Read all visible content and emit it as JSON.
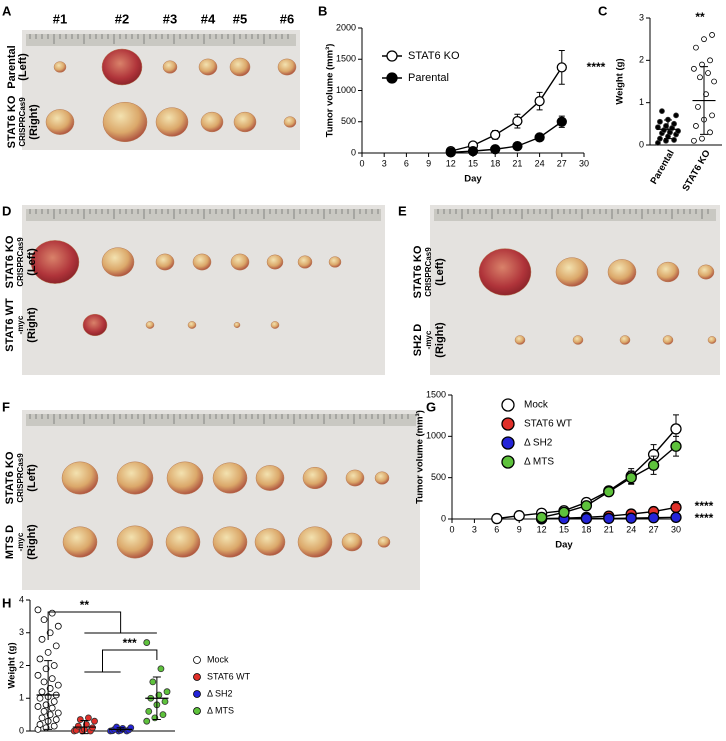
{
  "photo_panels": [
    {
      "letter": "A",
      "columns": [
        "#1",
        "#2",
        "#3",
        "#4",
        "#5",
        "#6"
      ],
      "rows": [
        [
          "Parental",
          "(Left)"
        ],
        [
          "STAT6 KO",
          "CRISPRCas9",
          "(Right)"
        ]
      ]
    },
    {
      "letter": "D",
      "rows": [
        [
          "STAT6 KO",
          "CRISPRCas9",
          "(Left)"
        ],
        [
          "STAT6 WT",
          "-myc",
          "(Right)"
        ]
      ]
    },
    {
      "letter": "E",
      "rows": [
        [
          "STAT6 KO",
          "CRISPRCas9",
          "(Left)"
        ],
        [
          "SH2 D",
          "-myc",
          "(Right)"
        ]
      ]
    },
    {
      "letter": "F",
      "rows": [
        [
          "STAT6 KO",
          "CRISPRCas9",
          "(Left)"
        ],
        [
          "MTS D",
          "-myc",
          "(Right)"
        ]
      ]
    }
  ],
  "chart_data": [
    {
      "type": "line",
      "panel_letter": "B",
      "x_label": "Day",
      "y_label": "Tumor volume (mm³)",
      "xlim": [
        0,
        30
      ],
      "xticks": [
        0,
        3,
        6,
        9,
        12,
        15,
        18,
        21,
        24,
        27,
        30
      ],
      "ylim": [
        0,
        2000
      ],
      "yticks": [
        0,
        500,
        1000,
        1500,
        2000
      ],
      "legend": "upper left",
      "x": [
        12,
        15,
        18,
        21,
        24,
        27
      ],
      "series": [
        {
          "name": "STAT6 KO",
          "color": "#ffffff",
          "values": [
            30,
            120,
            290,
            510,
            830,
            1370
          ],
          "errors": [
            20,
            40,
            70,
            110,
            140,
            270
          ]
        },
        {
          "name": "Parental",
          "color": "#000000",
          "values": [
            10,
            30,
            60,
            110,
            250,
            500
          ],
          "errors": [
            5,
            10,
            15,
            25,
            50,
            90
          ]
        }
      ],
      "annotations": [
        "****"
      ]
    },
    {
      "type": "dot",
      "panel_letter": "C",
      "y_label": "Weight (g)",
      "ylim": [
        0,
        3
      ],
      "yticks": [
        0,
        1,
        2,
        3
      ],
      "series": [
        {
          "name": "Parental",
          "color": "#000000",
          "mean": 0.37,
          "sd": 0.22,
          "points": [
            0.05,
            0.1,
            0.12,
            0.15,
            0.2,
            0.25,
            0.28,
            0.3,
            0.33,
            0.35,
            0.4,
            0.42,
            0.45,
            0.5,
            0.55,
            0.6,
            0.7,
            0.8
          ]
        },
        {
          "name": "STAT6 KO",
          "color": "#ffffff",
          "mean": 1.05,
          "sd": 0.8,
          "points": [
            0.1,
            0.15,
            0.3,
            0.45,
            0.6,
            0.7,
            0.9,
            1.2,
            1.5,
            1.6,
            1.7,
            1.8,
            1.9,
            2.0,
            2.3,
            2.5,
            2.6
          ]
        }
      ],
      "annotations": [
        "**"
      ]
    },
    {
      "type": "line",
      "panel_letter": "G",
      "x_label": "Day",
      "y_label": "Tumor volume (mm³)",
      "xlim": [
        0,
        30
      ],
      "xticks": [
        0,
        3,
        6,
        9,
        12,
        15,
        18,
        21,
        24,
        27,
        30
      ],
      "ylim": [
        0,
        1500
      ],
      "yticks": [
        0,
        500,
        1000,
        1500
      ],
      "legend": "upper left",
      "x": [
        6,
        9,
        12,
        15,
        18,
        21,
        24,
        27,
        30
      ],
      "series": [
        {
          "name": "Mock",
          "color": "#ffffff",
          "values": [
            5,
            40,
            70,
            100,
            200,
            340,
            520,
            780,
            1090
          ],
          "errors": [
            3,
            10,
            15,
            20,
            30,
            50,
            90,
            120,
            170
          ]
        },
        {
          "name": "STAT6 WT",
          "color": "#e0302a",
          "values": [
            null,
            null,
            5,
            10,
            20,
            35,
            60,
            90,
            140
          ],
          "errors": [
            null,
            null,
            2,
            4,
            8,
            12,
            20,
            40,
            70
          ]
        },
        {
          "name": "Δ SH2",
          "color": "#2424d8",
          "values": [
            null,
            null,
            2,
            3,
            5,
            7,
            10,
            15,
            20
          ],
          "errors": [
            null,
            null,
            1,
            1,
            2,
            3,
            4,
            5,
            8
          ]
        },
        {
          "name": "Δ MTS",
          "color": "#5ec23c",
          "values": [
            null,
            null,
            20,
            80,
            160,
            330,
            500,
            650,
            880
          ],
          "errors": [
            null,
            null,
            8,
            20,
            30,
            50,
            80,
            110,
            120
          ]
        }
      ],
      "annotations": [
        "****",
        "****"
      ]
    },
    {
      "type": "dot",
      "panel_letter": "H",
      "y_label": "Weight (g)",
      "ylim": [
        0,
        4
      ],
      "yticks": [
        0,
        1,
        2,
        3,
        4
      ],
      "legend": "outside right",
      "series": [
        {
          "name": "Mock",
          "color": "#ffffff",
          "mean": 1.1,
          "sd": 1.05,
          "points": [
            0.05,
            0.1,
            0.15,
            0.2,
            0.3,
            0.35,
            0.4,
            0.5,
            0.55,
            0.6,
            0.7,
            0.75,
            0.8,
            0.9,
            1.0,
            1.05,
            1.1,
            1.2,
            1.3,
            1.4,
            1.5,
            1.6,
            1.7,
            1.9,
            2.0,
            2.2,
            2.4,
            2.6,
            2.8,
            3.0,
            3.2,
            3.4,
            3.6,
            3.7
          ]
        },
        {
          "name": "STAT6 WT",
          "color": "#e0302a",
          "mean": 0.12,
          "sd": 0.2,
          "points": [
            0,
            0,
            0,
            0.02,
            0.05,
            0.1,
            0.15,
            0.2,
            0.3,
            0.35,
            0.4
          ]
        },
        {
          "name": "Δ SH2",
          "color": "#2424d8",
          "mean": 0.05,
          "sd": 0.05,
          "points": [
            0,
            0,
            0,
            0.01,
            0.02,
            0.03,
            0.05,
            0.08,
            0.1,
            0.12
          ]
        },
        {
          "name": "Δ MTS",
          "color": "#5ec23c",
          "mean": 1.0,
          "sd": 0.65,
          "points": [
            0.3,
            0.4,
            0.5,
            0.6,
            0.8,
            0.9,
            1.0,
            1.1,
            1.2,
            1.5,
            1.9,
            2.7
          ]
        }
      ],
      "annotations": [
        "**",
        "***"
      ]
    }
  ]
}
